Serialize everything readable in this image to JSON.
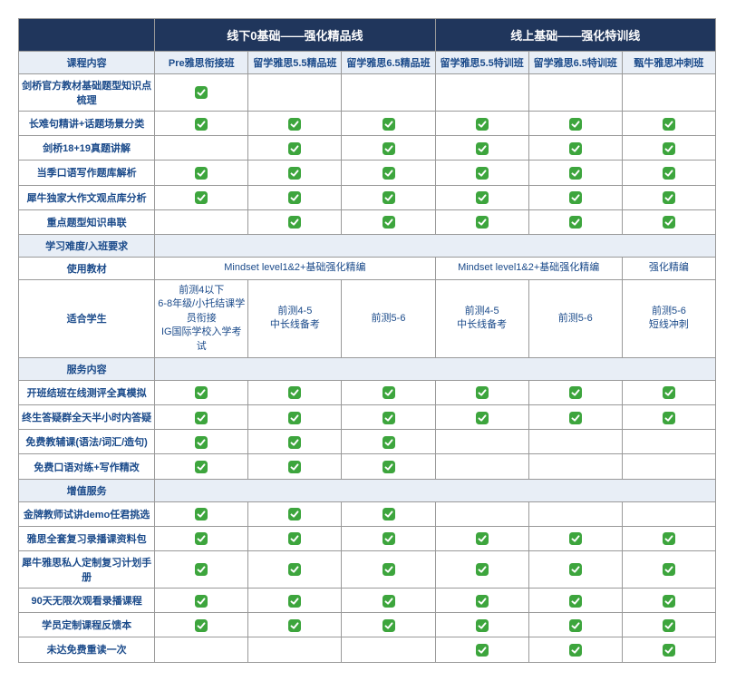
{
  "headers": {
    "groupA": "线下0基础——强化精品线",
    "groupB": "线上基础——强化特训线",
    "col0": "课程内容",
    "colA1": "Pre雅思衔接班",
    "colA2": "留学雅思5.5精品班",
    "colA3": "留学雅思6.5精品班",
    "colB1": "留学雅思5.5特训班",
    "colB2": "留学雅思6.5特训班",
    "colB3": "甄牛雅思冲刺班"
  },
  "sections": {
    "content": {
      "r1": "剑桥官方教材基础题型知识点梳理",
      "r2": "长难句精讲+话题场景分类",
      "r3": "剑桥18+19真题讲解",
      "r4": "当季口语写作题库解析",
      "r5": "犀牛独家大作文观点库分析",
      "r6": "重点题型知识串联"
    },
    "difficulty": {
      "header": "学习难度/入班要求",
      "material_label": "使用教材",
      "material_A": "Mindset level1&2+基础强化精编",
      "material_B12": "Mindset level1&2+基础强化精编",
      "material_B3": "强化精编",
      "student_label": "适合学生",
      "student_A1": "前测4以下\n6-8年级/小托结课学员衔接\nIG国际学校入学考试",
      "student_A2": "前测4-5\n中长线备考",
      "student_A3": "前测5-6",
      "student_B1": "前测4-5\n中长线备考",
      "student_B2": "前测5-6",
      "student_B3": "前测5-6\n短线冲刺"
    },
    "service": {
      "header": "服务内容",
      "r1": "开班结班在线测评全真模拟",
      "r2": "终生答疑群全天半小时内答疑",
      "r3": "免费教辅课(语法/词汇/造句)",
      "r4": "免费口语对练+写作精改"
    },
    "value": {
      "header": "增值服务",
      "r1": "金牌教师试讲demo任君挑选",
      "r2": "雅思全套复习录播课资料包",
      "r3": "犀牛雅思私人定制复习计划手册",
      "r4": "90天无限次观看录播课程",
      "r5": "学员定制课程反馈本",
      "r6": "未达免费重读一次"
    }
  },
  "checks": {
    "content": {
      "r1": [
        1,
        0,
        0,
        0,
        0,
        0
      ],
      "r2": [
        1,
        1,
        1,
        1,
        1,
        1
      ],
      "r3": [
        0,
        1,
        1,
        1,
        1,
        1
      ],
      "r4": [
        1,
        1,
        1,
        1,
        1,
        1
      ],
      "r5": [
        1,
        1,
        1,
        1,
        1,
        1
      ],
      "r6": [
        0,
        1,
        1,
        1,
        1,
        1
      ]
    },
    "service": {
      "r1": [
        1,
        1,
        1,
        1,
        1,
        1
      ],
      "r2": [
        1,
        1,
        1,
        1,
        1,
        1
      ],
      "r3": [
        1,
        1,
        1,
        0,
        0,
        0
      ],
      "r4": [
        1,
        1,
        1,
        0,
        0,
        0
      ]
    },
    "value": {
      "r1": [
        1,
        1,
        1,
        0,
        0,
        0
      ],
      "r2": [
        1,
        1,
        1,
        1,
        1,
        1
      ],
      "r3": [
        1,
        1,
        1,
        1,
        1,
        1
      ],
      "r4": [
        1,
        1,
        1,
        1,
        1,
        1
      ],
      "r5": [
        1,
        1,
        1,
        1,
        1,
        1
      ],
      "r6": [
        0,
        0,
        0,
        1,
        1,
        1
      ]
    }
  },
  "colors": {
    "header_bg": "#20365c",
    "header_fg": "#ffffff",
    "sub_bg": "#e8eef6",
    "text_blue": "#1a4a8a",
    "check_green": "#3da53d"
  }
}
